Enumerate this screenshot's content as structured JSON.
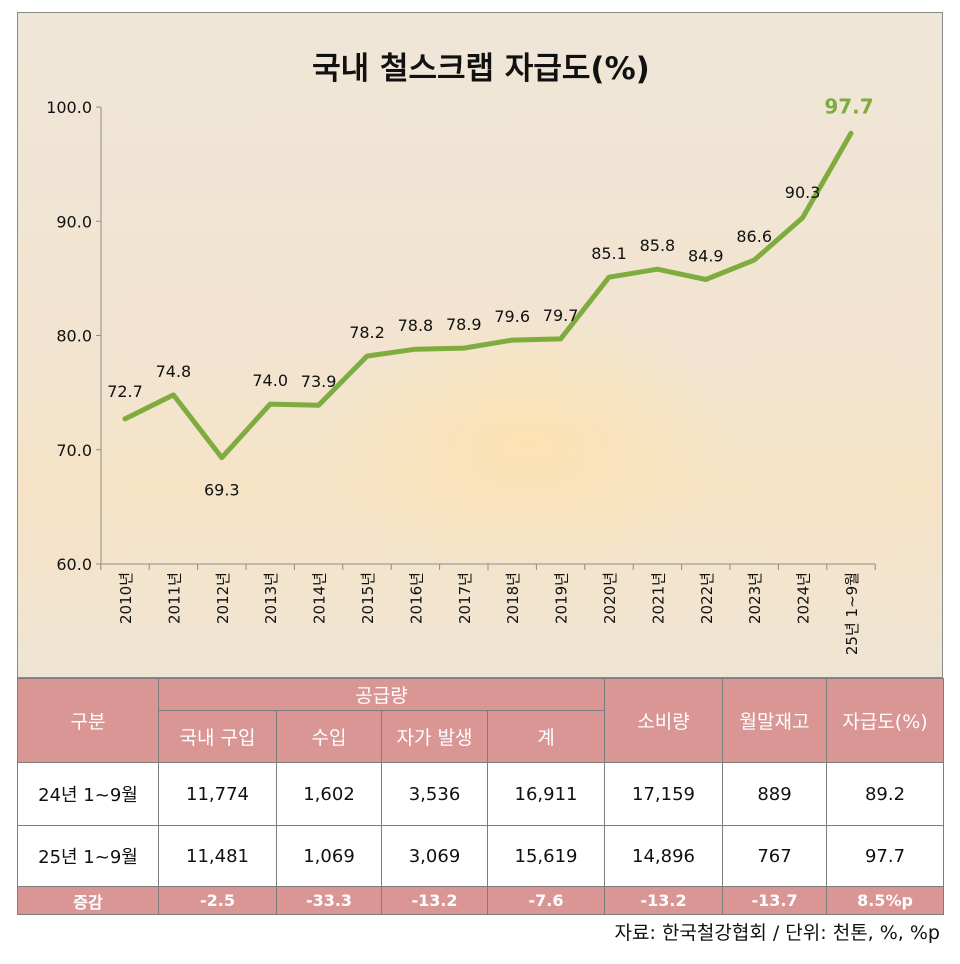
{
  "chart_data": {
    "type": "line",
    "title": "국내 철스크랩 자급도(%)",
    "categories": [
      "2010년",
      "2011년",
      "2012년",
      "2013년",
      "2014년",
      "2015년",
      "2016년",
      "2017년",
      "2018년",
      "2019년",
      "2020년",
      "2021년",
      "2022년",
      "2023년",
      "2024년",
      "25년 1~9월"
    ],
    "series": [
      {
        "values": [
          72.7,
          74.8,
          69.3,
          74.0,
          73.9,
          78.2,
          78.8,
          78.9,
          79.6,
          79.7,
          85.1,
          85.8,
          84.9,
          86.6,
          90.3,
          97.7
        ]
      }
    ],
    "value_labels": [
      "72.7",
      "74.8",
      "69.3",
      "74.0",
      "73.9",
      "78.2",
      "78.8",
      "78.9",
      "79.6",
      "79.7",
      "85.1",
      "85.8",
      "84.9",
      "86.6",
      "90.3",
      "97.7"
    ],
    "ylim": [
      60,
      100
    ],
    "yticks": [
      "60.0",
      "70.0",
      "80.0",
      "90.0",
      "100.0"
    ],
    "line_color": "#7fac3f",
    "grid": false
  },
  "table": {
    "header": {
      "category": "구분",
      "supply": "공급량",
      "domestic": "국내 구입",
      "import": "수입",
      "self": "자가 발생",
      "total": "계",
      "consumption": "소비량",
      "inventory": "월말재고",
      "selfsufficiency": "자급도(%)"
    },
    "rows": [
      {
        "label": "24년 1~9월",
        "domestic": "11,774",
        "import": "1,602",
        "self": "3,536",
        "total": "16,911",
        "consumption": "17,159",
        "inventory": "889",
        "ratio": "89.2"
      },
      {
        "label": "25년 1~9월",
        "domestic": "11,481",
        "import": "1,069",
        "self": "3,069",
        "total": "15,619",
        "consumption": "14,896",
        "inventory": "767",
        "ratio": "97.7"
      },
      {
        "label": "증감",
        "domestic": "-2.5",
        "import": "-33.3",
        "self": "-13.2",
        "total": "-7.6",
        "consumption": "-13.2",
        "inventory": "-13.7",
        "ratio": "8.5%p"
      }
    ],
    "header_color": "#d99694"
  },
  "source": "자료: 한국철강협회 / 단위: 천톤, %, %p"
}
